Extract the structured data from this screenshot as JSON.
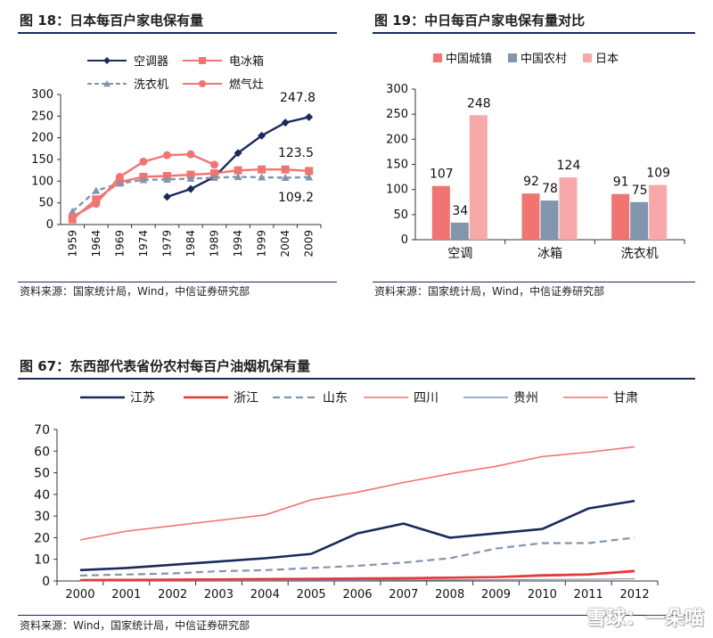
{
  "fig18": {
    "title": "图 18：日本每百户家电保有量",
    "source": "资料来源：国家统计局，Wind，中信证券研究部"
  },
  "fig19": {
    "title": "图 19：中日每百户家电保有量对比",
    "source": "资料来源：国家统计局，Wind，中信证券研究部"
  },
  "fig67": {
    "title": "图 67：东西部代表省份农村每百户油烟机保有量",
    "source": "资料来源：Wind，国家统计局，中信证券研究部"
  },
  "watermark": "雪球：一朵喵",
  "colors": {
    "navy": "#1a2a5a",
    "salmon": "#f27470",
    "steel": "#8195ad",
    "pink": "#f7a8a8",
    "red": "#e23b3b"
  },
  "chart_data": [
    {
      "id": "fig18",
      "type": "line",
      "x": [
        "1959",
        "1964",
        "1969",
        "1974",
        "1979",
        "1984",
        "1989",
        "1994",
        "1999",
        "2004",
        "2009"
      ],
      "ylim": [
        0,
        300
      ],
      "yticks": [
        0,
        50,
        100,
        150,
        200,
        250,
        300
      ],
      "legend_position": "top",
      "series": [
        {
          "name": "空调器",
          "values": [
            null,
            null,
            null,
            null,
            64,
            82,
            110,
            165,
            205,
            235,
            247.8
          ],
          "color": "#1a2a5a",
          "style": "solid",
          "marker": "diamond"
        },
        {
          "name": "电冰箱",
          "values": [
            12,
            58,
            98,
            110,
            112,
            115,
            118,
            125,
            127,
            127,
            123.5
          ],
          "color": "#f27470",
          "style": "solid",
          "marker": "square"
        },
        {
          "name": "洗衣机",
          "values": [
            30,
            78,
            95,
            103,
            104,
            106,
            108,
            110,
            109,
            108,
            109.2
          ],
          "color": "#8195ad",
          "style": "dashed",
          "marker": "triangle"
        },
        {
          "name": "燃气灶",
          "values": [
            18,
            48,
            110,
            145,
            160,
            162,
            138,
            null,
            null,
            null,
            null
          ],
          "color": "#f27470",
          "style": "solid",
          "marker": "circle"
        }
      ],
      "annotations": [
        "247.8",
        "123.5",
        "109.2"
      ]
    },
    {
      "id": "fig19",
      "type": "bar",
      "categories": [
        "空调",
        "冰箱",
        "洗衣机"
      ],
      "ylim": [
        0,
        300
      ],
      "yticks": [
        0,
        50,
        100,
        150,
        200,
        250,
        300
      ],
      "legend_position": "top",
      "series": [
        {
          "name": "中国城镇",
          "values": [
            107,
            92,
            91
          ],
          "color": "#f27470"
        },
        {
          "name": "中国农村",
          "values": [
            34,
            78,
            75
          ],
          "color": "#8195ad"
        },
        {
          "name": "日本",
          "values": [
            248,
            124,
            109
          ],
          "color": "#f7a8a8"
        }
      ]
    },
    {
      "id": "fig67",
      "type": "line",
      "x": [
        "2000",
        "2001",
        "2002",
        "2003",
        "2004",
        "2005",
        "2006",
        "2007",
        "2008",
        "2009",
        "2010",
        "2011",
        "2012"
      ],
      "ylim": [
        0,
        70
      ],
      "yticks": [
        0,
        10,
        20,
        30,
        40,
        50,
        60,
        70
      ],
      "legend_position": "top",
      "series": [
        {
          "name": "江苏",
          "values": [
            5,
            6,
            7.5,
            9,
            10.5,
            12.5,
            22,
            26.5,
            20,
            22,
            24,
            33.5,
            37
          ],
          "color": "#1a2a5a",
          "style": "solid",
          "width": 2.6
        },
        {
          "name": "浙江",
          "values": [
            0.4,
            0.5,
            0.6,
            0.7,
            0.8,
            0.9,
            1.0,
            1.2,
            1.5,
            1.8,
            2.5,
            3.0,
            4.5
          ],
          "color": "#e23b3b",
          "style": "solid",
          "width": 2.6
        },
        {
          "name": "山东",
          "values": [
            2.5,
            3,
            3.5,
            4.5,
            5,
            6,
            7,
            8.5,
            10.5,
            15,
            17.5,
            17.5,
            20
          ],
          "color": "#8195ad",
          "style": "dashed",
          "width": 2.2
        },
        {
          "name": "四川",
          "values": [
            0.6,
            0.7,
            0.9,
            1.0,
            1.2,
            1.3,
            1.5,
            1.6,
            1.8,
            2.0,
            3.0,
            3.3,
            5.0
          ],
          "color": "#f27470",
          "style": "solid",
          "width": 1.2
        },
        {
          "name": "贵州",
          "values": [
            0.1,
            0.1,
            0.2,
            0.2,
            0.2,
            0.3,
            0.3,
            0.4,
            0.5,
            0.6,
            0.7,
            0.8,
            1.0
          ],
          "color": "#8195ad",
          "style": "solid",
          "width": 1.2
        },
        {
          "name": "甘肃",
          "values": [
            19,
            23,
            25.5,
            28,
            30.5,
            37.5,
            41,
            45.5,
            49.5,
            53,
            57.5,
            59.5,
            62
          ],
          "color": "#f27470",
          "style": "solid",
          "width": 1.6
        }
      ]
    }
  ]
}
